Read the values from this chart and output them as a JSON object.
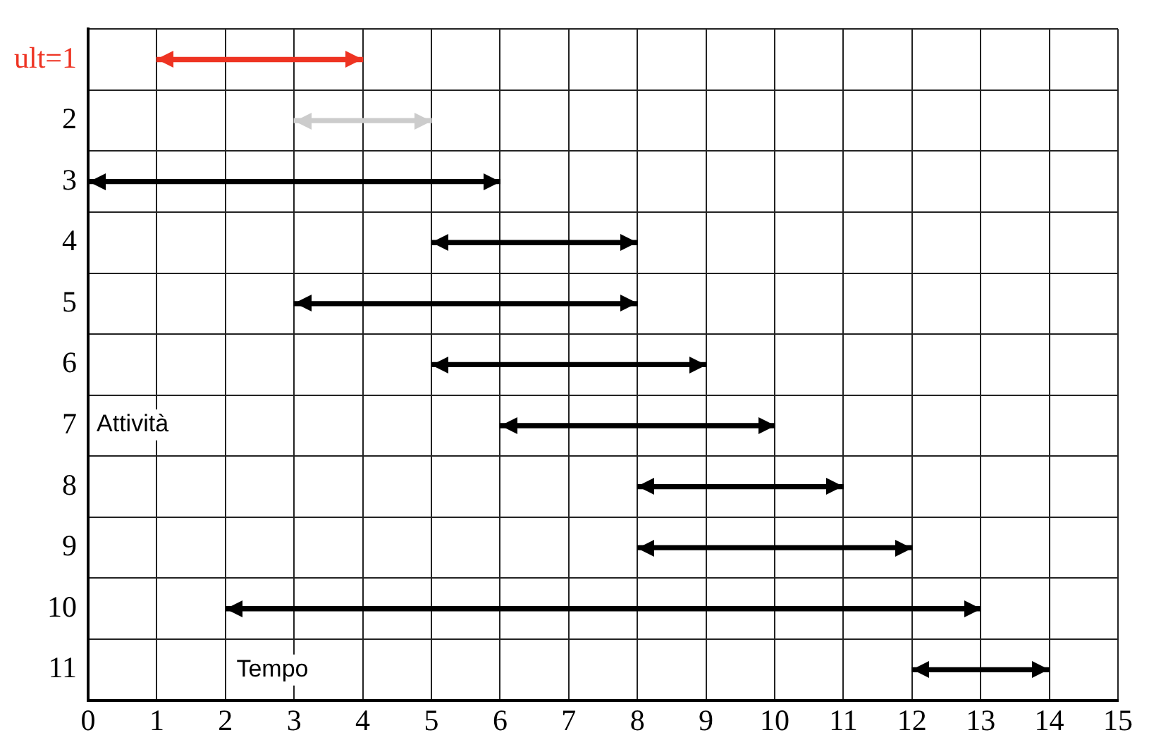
{
  "chart_data": {
    "type": "bar",
    "orientation": "horizontal",
    "xlabel": "Tempo",
    "ylabel": "Attività",
    "categories": [
      "ult=1",
      "2",
      "3",
      "4",
      "5",
      "6",
      "7",
      "8",
      "9",
      "10",
      "11"
    ],
    "base": [
      1,
      3,
      0,
      5,
      3,
      5,
      6,
      8,
      8,
      2,
      12
    ],
    "values": [
      3,
      2,
      6,
      3,
      5,
      4,
      4,
      3,
      4,
      11,
      2
    ],
    "colors": [
      "#ee3322",
      "#cccccc",
      "#000000",
      "#000000",
      "#000000",
      "#000000",
      "#000000",
      "#000000",
      "#000000",
      "#000000",
      "#000000"
    ],
    "xlim": [
      0,
      15
    ],
    "xticks": [
      0,
      1,
      2,
      3,
      4,
      5,
      6,
      7,
      8,
      9,
      10,
      11,
      12,
      13,
      14,
      15
    ],
    "grid": true,
    "legend": false
  }
}
